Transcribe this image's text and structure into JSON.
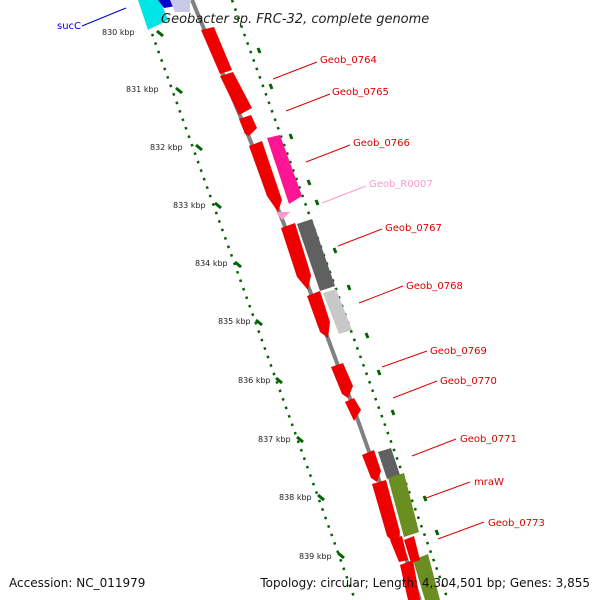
{
  "title": "Geobacter sp. FRC-32, complete genome",
  "footer": {
    "accession": "Accession: NC_011979",
    "summary": "Topology: circular; Length: 4,304,501 bp; Genes: 3,855"
  },
  "kbp_labels": [
    "830 kbp",
    "831 kbp",
    "832 kbp",
    "833 kbp",
    "834 kbp",
    "835 kbp",
    "836 kbp",
    "837 kbp",
    "838 kbp",
    "839 kbp"
  ],
  "genes": [
    {
      "name": "sucC",
      "color": "#0000cc"
    },
    {
      "name": "Geob_0764",
      "color": "#dd0000"
    },
    {
      "name": "Geob_0765",
      "color": "#dd0000"
    },
    {
      "name": "Geob_0766",
      "color": "#dd0000"
    },
    {
      "name": "Geob_R0007",
      "color": "#ff99cc"
    },
    {
      "name": "Geob_0767",
      "color": "#dd0000"
    },
    {
      "name": "Geob_0768",
      "color": "#dd0000"
    },
    {
      "name": "Geob_0769",
      "color": "#dd0000"
    },
    {
      "name": "Geob_0770",
      "color": "#dd0000"
    },
    {
      "name": "Geob_0771",
      "color": "#dd0000"
    },
    {
      "name": "mraW",
      "color": "#dd0000"
    },
    {
      "name": "Geob_0773",
      "color": "#dd0000"
    }
  ],
  "colors": {
    "cds": "#ee0000",
    "rrna": "#ff1493",
    "cog_dark": "#606060",
    "cog_light": "#c8c8c8",
    "cog_green": "#6b8e23",
    "cog_cyan": "#00e5e5",
    "backbone": "#808080",
    "tick": "#006400"
  }
}
